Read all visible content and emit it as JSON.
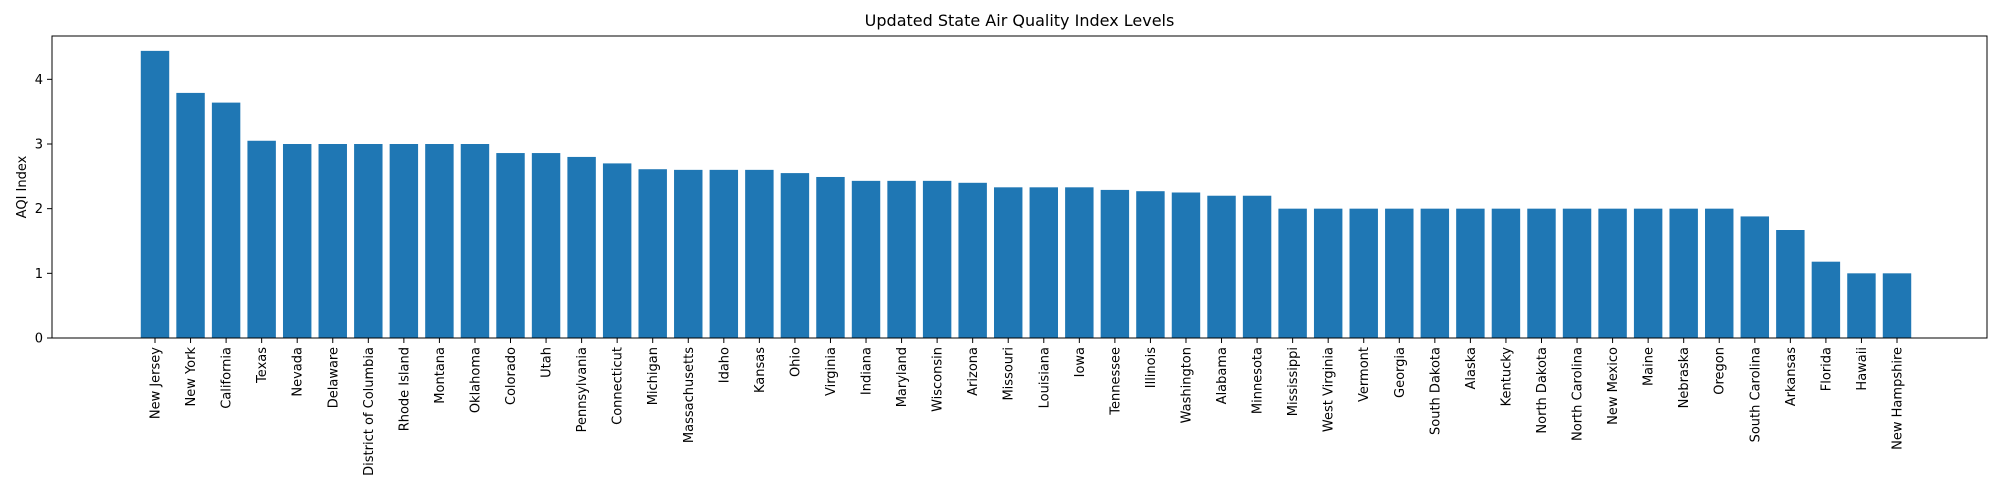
{
  "chart_data": {
    "type": "bar",
    "title": "Updated State Air Quality Index Levels",
    "xlabel": "",
    "ylabel": "AQI Index",
    "ylim": [
      0,
      4.67
    ],
    "yticks": [
      0,
      1,
      2,
      3,
      4
    ],
    "grid": false,
    "bar_color": "#1f77b4",
    "categories": [
      "New Jersey",
      "New York",
      "California",
      "Texas",
      "Nevada",
      "Delaware",
      "District of Columbia",
      "Rhode Island",
      "Montana",
      "Oklahoma",
      "Colorado",
      "Utah",
      "Pennsylvania",
      "Connecticut",
      "Michigan",
      "Massachusetts",
      "Idaho",
      "Kansas",
      "Ohio",
      "Virginia",
      "Indiana",
      "Maryland",
      "Wisconsin",
      "Arizona",
      "Missouri",
      "Louisiana",
      "Iowa",
      "Tennessee",
      "Illinois",
      "Washington",
      "Alabama",
      "Minnesota",
      "Mississippi",
      "West Virginia",
      "Vermont",
      "Georgia",
      "South Dakota",
      "Alaska",
      "Kentucky",
      "North Dakota",
      "North Carolina",
      "New Mexico",
      "Maine",
      "Nebraska",
      "Oregon",
      "South Carolina",
      "Arkansas",
      "Florida",
      "Hawaii",
      "New Hampshire"
    ],
    "values": [
      4.44,
      3.79,
      3.64,
      3.05,
      3.0,
      3.0,
      3.0,
      3.0,
      3.0,
      3.0,
      2.86,
      2.86,
      2.8,
      2.7,
      2.61,
      2.6,
      2.6,
      2.6,
      2.55,
      2.49,
      2.43,
      2.43,
      2.43,
      2.4,
      2.33,
      2.33,
      2.33,
      2.29,
      2.27,
      2.25,
      2.2,
      2.2,
      2.0,
      2.0,
      2.0,
      2.0,
      2.0,
      2.0,
      2.0,
      2.0,
      2.0,
      2.0,
      2.0,
      2.0,
      2.0,
      1.88,
      1.67,
      1.18,
      1.0,
      1.0
    ]
  }
}
